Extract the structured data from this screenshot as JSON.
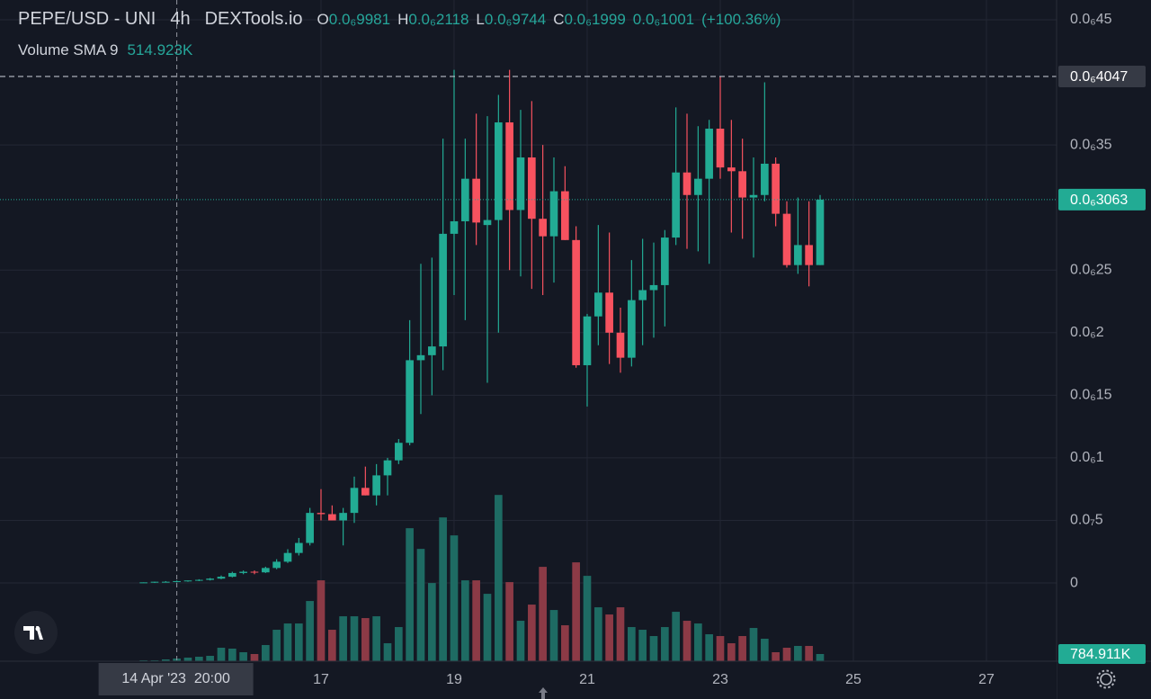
{
  "chart_data": {
    "type": "candlestick",
    "title": "PEPE/USD - UNI",
    "interval": "4h",
    "source": "DEXTools.io",
    "ohlc_legend": [
      {
        "key": "O",
        "text": "0.0₆9981"
      },
      {
        "key": "H",
        "text": "0.0₆2118"
      },
      {
        "key": "L",
        "text": "0.0₆9744"
      },
      {
        "key": "C",
        "text": "0.0₆1999"
      }
    ],
    "change": "0.0₆1001",
    "change_pct": "(+100.36%)",
    "volume_label": "Volume SMA 9",
    "volume_sma": "514.923K",
    "up_color": "#22ab94",
    "down_color": "#f7525f",
    "volume_up_color": "#1e6b63",
    "volume_down_color": "#8c3a46",
    "grid": true,
    "x": [
      14.333,
      14.5,
      14.667,
      14.833,
      15,
      15.167,
      15.333,
      15.5,
      15.667,
      15.833,
      16,
      16.167,
      16.333,
      16.5,
      16.667,
      16.833,
      17,
      17.167,
      17.333,
      17.5,
      17.667,
      17.833,
      18,
      18.167,
      18.333,
      18.5,
      18.667,
      18.833,
      19,
      19.167,
      19.333,
      19.5,
      19.667,
      19.833,
      20,
      20.167,
      20.333,
      20.5,
      20.667,
      20.833,
      21,
      21.167,
      21.333,
      21.5,
      21.667,
      21.833,
      22,
      22.167,
      22.333,
      22.5,
      22.667,
      22.833,
      23,
      23.167,
      23.333,
      23.5,
      23.667,
      23.833,
      24,
      24.167,
      24.333,
      24.5
    ],
    "open": [
      0,
      5e-10,
      1e-09,
      1e-09,
      1.5e-09,
      2e-09,
      2.5e-09,
      3.5e-09,
      5e-09,
      8e-09,
      9e-09,
      8.5e-09,
      1.2e-08,
      1.7e-08,
      2.4e-08,
      3.2e-08,
      5.6e-08,
      5.5e-08,
      5e-08,
      5.6e-08,
      7.6e-08,
      7e-08,
      8.6e-08,
      9.8e-08,
      1.12e-07,
      1.78e-07,
      1.82e-07,
      1.89e-07,
      2.79e-07,
      2.89e-07,
      3.23e-07,
      2.86e-07,
      2.9e-07,
      3.68e-07,
      2.98e-07,
      3.4e-07,
      2.91e-07,
      2.77e-07,
      3.13e-07,
      2.74e-07,
      1.74e-07,
      2.13e-07,
      2.32e-07,
      2e-07,
      1.8e-07,
      2.26e-07,
      2.34e-07,
      2.38e-07,
      2.76e-07,
      3.28e-07,
      3.1e-07,
      3.23e-07,
      3.63e-07,
      3.32e-07,
      3.29e-07,
      3.08e-07,
      3.1e-07,
      3.35e-07,
      2.95e-07,
      2.54e-07,
      2.7e-07,
      2.54e-07
    ],
    "high": [
      5e-10,
      1e-09,
      1.5e-09,
      2e-09,
      2e-09,
      3e-09,
      4e-09,
      6e-09,
      9e-09,
      1e-08,
      1e-08,
      1.3e-08,
      1.9e-08,
      2.7e-08,
      3.6e-08,
      6e-08,
      7.5e-08,
      6.2e-08,
      6e-08,
      8.5e-08,
      9.3e-08,
      9.5e-08,
      1e-07,
      1.15e-07,
      2.1e-07,
      2.55e-07,
      2.6e-07,
      3.55e-07,
      4.1e-07,
      3.55e-07,
      3.75e-07,
      3.73e-07,
      3.9e-07,
      4.1e-07,
      3.78e-07,
      3.85e-07,
      3.5e-07,
      3.4e-07,
      3.33e-07,
      2.85e-07,
      2.15e-07,
      2.86e-07,
      2.8e-07,
      2.2e-07,
      2.58e-07,
      2.75e-07,
      2.72e-07,
      2.82e-07,
      3.8e-07,
      3.75e-07,
      3.65e-07,
      3.7e-07,
      4.047e-07,
      3.7e-07,
      3.55e-07,
      3.4e-07,
      4e-07,
      3.4e-07,
      3.05e-07,
      3.08e-07,
      3.05e-07,
      3.1e-07
    ],
    "low": [
      0,
      0,
      5e-10,
      5e-10,
      1e-09,
      1.5e-09,
      2e-09,
      3e-09,
      4.5e-09,
      7e-09,
      7e-09,
      8e-09,
      1.1e-08,
      1.6e-08,
      2.2e-08,
      3e-08,
      5e-08,
      5e-08,
      3e-08,
      4.8e-08,
      7e-08,
      6.2e-08,
      7e-08,
      9.5e-08,
      1.1e-07,
      1.35e-07,
      1.5e-07,
      1.7e-07,
      2.3e-07,
      2.1e-07,
      2.7e-07,
      1.6e-07,
      2e-07,
      2.5e-07,
      2.45e-07,
      2.35e-07,
      2.3e-07,
      2.4e-07,
      2.74e-07,
      1.72e-07,
      1.41e-07,
      1.9e-07,
      1.75e-07,
      1.68e-07,
      1.73e-07,
      1.9e-07,
      1.96e-07,
      2.05e-07,
      2.7e-07,
      2.67e-07,
      2.65e-07,
      2.55e-07,
      3.23e-07,
      2.8e-07,
      2.75e-07,
      2.6e-07,
      3.05e-07,
      2.85e-07,
      2.52e-07,
      2.47e-07,
      2.37e-07,
      2.54e-07
    ],
    "close": [
      5e-10,
      1e-09,
      1e-09,
      1.5e-09,
      2e-09,
      2.5e-09,
      3.5e-09,
      5e-09,
      8e-09,
      9e-09,
      8.5e-09,
      1.2e-08,
      1.7e-08,
      2.4e-08,
      3.2e-08,
      5.6e-08,
      5.5e-08,
      5e-08,
      5.6e-08,
      7.6e-08,
      7e-08,
      8.6e-08,
      9.8e-08,
      1.12e-07,
      1.78e-07,
      1.82e-07,
      1.89e-07,
      2.79e-07,
      2.89e-07,
      3.23e-07,
      2.88e-07,
      2.9e-07,
      3.68e-07,
      2.98e-07,
      3.4e-07,
      2.91e-07,
      2.77e-07,
      3.13e-07,
      2.74e-07,
      1.74e-07,
      2.13e-07,
      2.32e-07,
      2e-07,
      1.8e-07,
      2.26e-07,
      2.34e-07,
      2.38e-07,
      2.76e-07,
      3.28e-07,
      3.1e-07,
      3.23e-07,
      3.63e-07,
      3.32e-07,
      3.29e-07,
      3.08e-07,
      3.1e-07,
      3.35e-07,
      2.95e-07,
      2.54e-07,
      2.7e-07,
      2.54e-07,
      3.063e-07
    ],
    "volume": [
      98000,
      98000,
      196000,
      294000,
      392000,
      490000,
      588000,
      1470000,
      1372000,
      980000,
      784000,
      1764000,
      3430000,
      4116000,
      4116000,
      6566000,
      8820000,
      3430000,
      4900000,
      4900000,
      4704000,
      4900000,
      1960000,
      3724000,
      14504000,
      12250000,
      8526000,
      15680000,
      13720000,
      8820000,
      8820000,
      7350000,
      18130000,
      8624000,
      4410000,
      6174000,
      10290000,
      5586000,
      3920000,
      10780000,
      9310000,
      5880000,
      5096000,
      5880000,
      3724000,
      3430000,
      2744000,
      3724000,
      5390000,
      4410000,
      4116000,
      2940000,
      2744000,
      1960000,
      2744000,
      3626000,
      2450000,
      980000,
      1470000,
      1666000,
      1666000,
      784911
    ],
    "xlim": [
      12.176,
      28.054
    ],
    "xticks": [
      17,
      19,
      21,
      23,
      25,
      27
    ],
    "ylim": [
      -6.25e-08,
      4.658e-07
    ],
    "yticks": [
      {
        "value": 4.5e-07,
        "label": "0.0₆45"
      },
      {
        "value": 3.5e-07,
        "label": "0.0₆35"
      },
      {
        "value": 2.5e-07,
        "label": "0.0₆25"
      },
      {
        "value": 2e-07,
        "label": "0.0₆2"
      },
      {
        "value": 1.5e-07,
        "label": "0.0₆15"
      },
      {
        "value": 1e-07,
        "label": "0.0₆1"
      },
      {
        "value": 5e-08,
        "label": "0.0₇5"
      },
      0
    ],
    "volume_lim": [
      0,
      72100000
    ],
    "price_lines": [
      {
        "value": 4.047e-07,
        "label": "0.0₆4047",
        "style": "dashed"
      },
      {
        "value": 3.063e-07,
        "label": "0.0₆3063",
        "style": "dotted"
      }
    ],
    "volume_marker": {
      "value": 784911,
      "label": "784.911K"
    },
    "crosshair": {
      "x": 14.833,
      "label": "14 Apr '23  20:00"
    }
  }
}
